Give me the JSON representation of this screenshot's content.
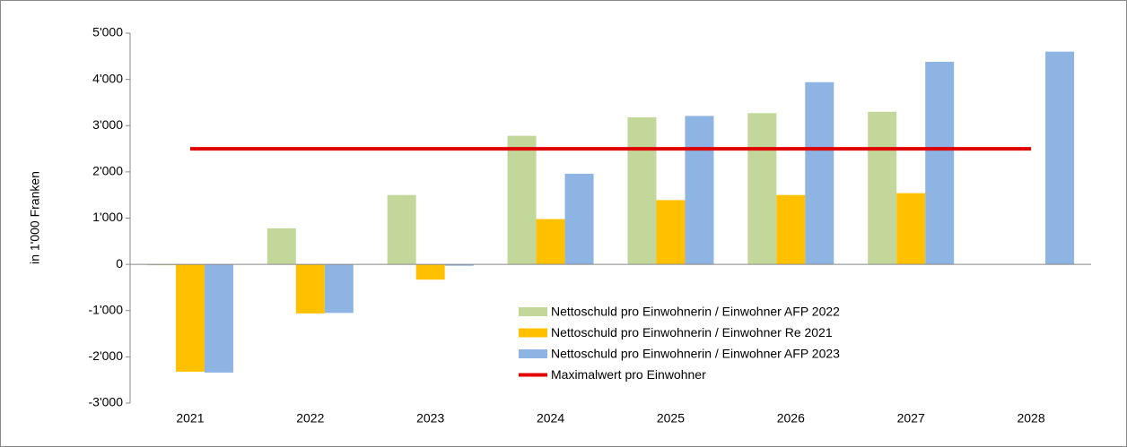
{
  "chart_data": {
    "type": "bar",
    "y_label": "in 1'000 Franken",
    "categories": [
      "2021",
      "2022",
      "2023",
      "2024",
      "2025",
      "2026",
      "2027",
      "2028"
    ],
    "series": [
      {
        "name": "Nettoschuld pro Einwohnerin / Einwohner AFP 2022",
        "color": "#c4d79b",
        "values": [
          0,
          780,
          1500,
          2780,
          3180,
          3270,
          3300,
          null
        ]
      },
      {
        "name": "Nettoschuld pro Einwohnerin / Einwohner Re 2021",
        "color": "#ffc000",
        "values": [
          -2320,
          -1060,
          -330,
          980,
          1390,
          1500,
          1540,
          null
        ]
      },
      {
        "name": "Nettoschuld pro Einwohnerin / Einwohner AFP 2023",
        "color": "#8eb4e3",
        "values": [
          -2340,
          -1050,
          -30,
          1960,
          3210,
          3940,
          4380,
          4600
        ]
      },
      {
        "name": "Maximalwert pro Einwohner",
        "color": "#e00000",
        "type": "line",
        "values": [
          2500,
          2500,
          2500,
          2500,
          2500,
          2500,
          2500,
          2500
        ]
      }
    ],
    "ylim": [
      -3000,
      5000
    ],
    "yticks": [
      {
        "value": -3000,
        "label": "-3'000"
      },
      {
        "value": -2000,
        "label": "-2'000"
      },
      {
        "value": -1000,
        "label": "-1'000"
      },
      0,
      {
        "value": 1000,
        "label": "1'000"
      },
      {
        "value": 2000,
        "label": "2'000"
      },
      {
        "value": 3000,
        "label": "3'000"
      },
      {
        "value": 4000,
        "label": "4'000"
      },
      {
        "value": 5000,
        "label": "5'000"
      }
    ],
    "legend": "inside-bottom-center"
  }
}
